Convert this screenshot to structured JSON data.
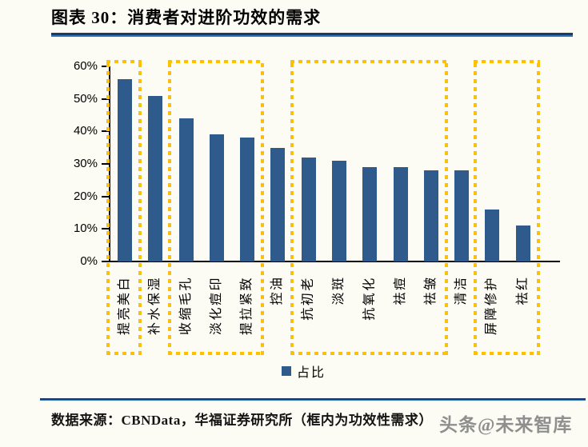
{
  "page": {
    "title": "图表 30：消费者对进阶功效的需求",
    "watermark": "头条@未来智库"
  },
  "footer": {
    "source": "数据来源：CBNData，华福证券研究所（框内为功效性需求）"
  },
  "chart_data": {
    "type": "bar",
    "title": "消费者对进阶功效的需求",
    "categories": [
      "提亮美白",
      "补水保湿",
      "收缩毛孔",
      "淡化痘印",
      "提拉紧致",
      "控油",
      "抗初老",
      "淡斑",
      "抗氧化",
      "祛痘",
      "祛皱",
      "清洁",
      "屏障修护",
      "祛红"
    ],
    "values": [
      56,
      51,
      44,
      39,
      38,
      35,
      32,
      31,
      29,
      29,
      28,
      28,
      16,
      11
    ],
    "value_unit": "%",
    "xlabel": "",
    "ylabel": "",
    "ylim": [
      0,
      60
    ],
    "yticks": [
      "0%",
      "10%",
      "20%",
      "30%",
      "40%",
      "50%",
      "60%"
    ],
    "grid": false,
    "legend": [
      {
        "label": "占比",
        "color": "#2F5B8C"
      }
    ],
    "legend_position": "bottom",
    "bar_color": "#2F5B8C",
    "highlight_boxes": {
      "color": "#FFC000",
      "style": "dotted",
      "groups": [
        [
          0,
          0
        ],
        [
          2,
          4
        ],
        [
          6,
          10
        ],
        [
          12,
          13
        ]
      ]
    }
  },
  "colors": {
    "background": "#FCFCF4",
    "bar": "#2F5B8C",
    "highlight_box": "#FFC000",
    "title_rule_dark": "#1F3864",
    "title_rule_blue": "#2E75B6",
    "axis": "#000000",
    "watermark": "#8F8F8F"
  }
}
